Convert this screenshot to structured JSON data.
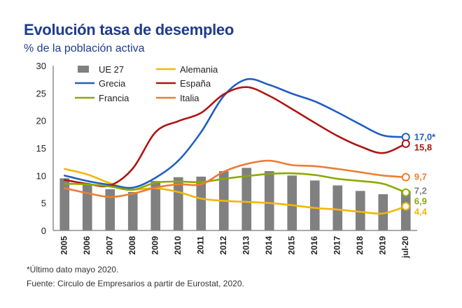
{
  "title": "Evolución tasa de desempleo",
  "subtitle": "% de la población activa",
  "footnote": "*Último dato mayo 2020.",
  "source": "Fuente: Circulo de Empresarios a partir de Eurostat, 2020.",
  "chart_data": {
    "type": "bar+line",
    "categories": [
      "2005",
      "2006",
      "2007",
      "2008",
      "2009",
      "2010",
      "2011",
      "2012",
      "2013",
      "2014",
      "2015",
      "2016",
      "2017",
      "2018",
      "2019",
      "jul-20"
    ],
    "ylim": [
      0,
      30
    ],
    "yticks": [
      "0",
      "5",
      "10",
      "15",
      "20",
      "25",
      "30"
    ],
    "grid": false,
    "legend_position": "top-left",
    "bar_series": {
      "name": "UE 27",
      "color": "#808080",
      "values": [
        9.5,
        8.5,
        7.5,
        7.0,
        9.0,
        9.7,
        9.8,
        10.8,
        11.4,
        10.8,
        10.0,
        9.1,
        8.2,
        7.2,
        6.6,
        7.2
      ]
    },
    "series": [
      {
        "name": "Alemania",
        "color": "#f2b705",
        "values": [
          11.2,
          10.2,
          8.6,
          7.5,
          7.7,
          7.0,
          5.8,
          5.4,
          5.2,
          5.0,
          4.6,
          4.1,
          3.8,
          3.4,
          3.1,
          4.4
        ]
      },
      {
        "name": "Grecia",
        "color": "#1f5fc4",
        "values": [
          10.0,
          9.0,
          8.3,
          7.8,
          9.6,
          12.7,
          17.9,
          24.5,
          27.5,
          26.5,
          24.9,
          23.5,
          21.5,
          19.3,
          17.3,
          17.0
        ]
      },
      {
        "name": "España",
        "color": "#b01414",
        "values": [
          9.2,
          8.5,
          8.2,
          11.3,
          17.9,
          19.9,
          21.4,
          24.8,
          26.1,
          24.5,
          22.1,
          19.6,
          17.2,
          15.3,
          14.1,
          15.8
        ]
      },
      {
        "name": "Francia",
        "color": "#8fa800",
        "values": [
          8.5,
          8.4,
          8.0,
          7.4,
          8.7,
          8.9,
          8.8,
          9.4,
          9.9,
          10.3,
          10.4,
          10.1,
          9.4,
          9.0,
          8.5,
          6.9
        ]
      },
      {
        "name": "Italia",
        "color": "#ed7d31",
        "values": [
          7.7,
          6.8,
          6.1,
          6.7,
          7.8,
          8.4,
          8.4,
          10.7,
          12.1,
          12.7,
          11.9,
          11.7,
          11.2,
          10.6,
          10.0,
          9.7
        ]
      }
    ],
    "end_labels": [
      {
        "text": "17,0*",
        "series": "Grecia",
        "value": 17.0,
        "color": "#1f5fc4"
      },
      {
        "text": "15,8",
        "series": "España",
        "value": 15.8,
        "color": "#b01414"
      },
      {
        "text": "9,7",
        "series": "Italia",
        "value": 9.7,
        "color": "#ed7d31"
      },
      {
        "text": "7,2",
        "series": "UE 27",
        "value": 7.2,
        "color": "#808080"
      },
      {
        "text": "6,9",
        "series": "Francia",
        "value": 6.9,
        "color": "#8fa800"
      },
      {
        "text": "4,4",
        "series": "Alemania",
        "value": 4.4,
        "color": "#f2b705"
      }
    ]
  }
}
